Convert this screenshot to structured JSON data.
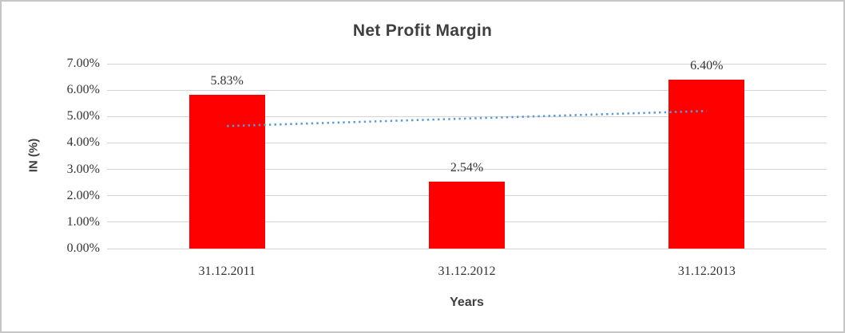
{
  "chart_data": {
    "type": "bar",
    "title": "Net Profit Margin",
    "categories": [
      "31.12.2011",
      "31.12.2012",
      "31.12.2013"
    ],
    "values": [
      5.83,
      2.54,
      6.4
    ],
    "data_labels": [
      "5.83%",
      "2.54%",
      "6.40%"
    ],
    "xlabel": "Years",
    "ylabel": "IN (%)",
    "ylim": [
      0,
      7
    ],
    "y_tick_step": 1,
    "y_tick_labels": [
      "0.00%",
      "1.00%",
      "2.00%",
      "3.00%",
      "4.00%",
      "5.00%",
      "6.00%",
      "7.00%"
    ],
    "grid": true,
    "legend_position": "none",
    "trendline": {
      "type": "linear",
      "style": "dotted",
      "start_value": 4.64,
      "end_value": 5.21
    },
    "colors": {
      "bar": "#ff0000",
      "trendline": "#5b9bd5",
      "gridline": "#d4d4d4",
      "title_text": "#3f3f3f",
      "tick_text": "#333333",
      "chart_border": "#c6c6c6"
    }
  }
}
